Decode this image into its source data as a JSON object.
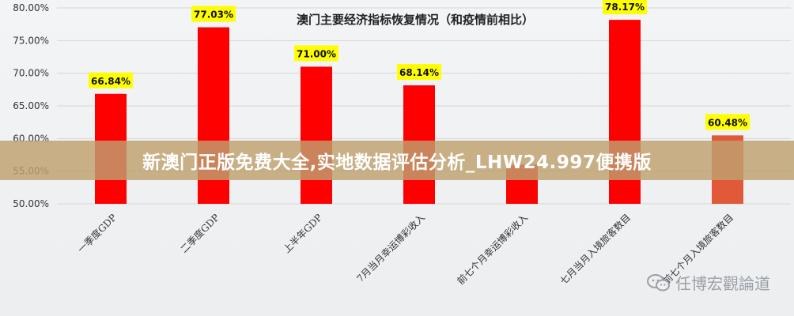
{
  "banner": {
    "text": "新澳门正版免费大全,实地数据评估分析_LHW24.997便携版"
  },
  "watermark": {
    "text": "任博宏觀論道",
    "icon": "wechat-icon"
  },
  "chart_data": {
    "type": "bar",
    "title": "澳门主要经济指标恢复情况（和疫情前相比）",
    "categories": [
      "一季度GDP",
      "二季度GDP",
      "上半年GDP",
      "7月当月幸运博彩收入",
      "前七个月幸运博彩收入",
      "七月当月入境旅客数目",
      "前七个月入境旅客数目"
    ],
    "values": [
      66.84,
      77.03,
      71.0,
      68.14,
      56.0,
      78.17,
      60.48
    ],
    "data_labels": [
      "66.84%",
      "77.03%",
      "71.00%",
      "68.14%",
      "",
      "78.17%",
      "60.48%"
    ],
    "yticks": [
      "80.00%",
      "75.00%",
      "70.00%",
      "65.00%",
      "60.00%",
      "55.00%",
      "50.00%"
    ],
    "ylim": [
      50,
      80
    ],
    "grid": true,
    "colors": {
      "bar": "#ff0000",
      "bar_last": "#e05a3a",
      "label_bg": "#ffff00",
      "grid": "#d6d6d6"
    }
  }
}
